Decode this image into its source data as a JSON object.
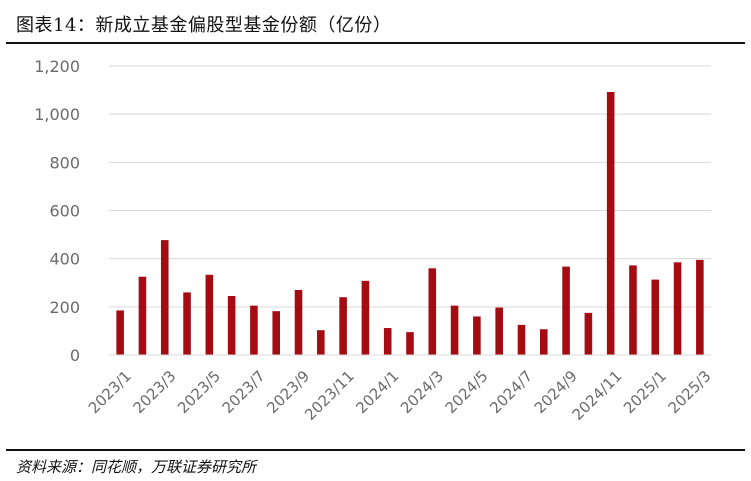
{
  "figure": {
    "title": "图表14：新成立基金偏股型基金份额（亿份）",
    "source": "资料来源：同花顺，万联证券研究所"
  },
  "chart_data": {
    "type": "bar",
    "title": "图表14：新成立基金偏股型基金份额（亿份）",
    "xlabel": "",
    "ylabel": "",
    "ylim": [
      0,
      1200
    ],
    "yticks": [
      0,
      200,
      400,
      600,
      800,
      1000,
      1200
    ],
    "ytick_labels": [
      "0",
      "200",
      "400",
      "600",
      "800",
      "1,000",
      "1,200"
    ],
    "grid": true,
    "bar_color": "#a50c12",
    "categories": [
      "2023/1",
      "2023/2",
      "2023/3",
      "2023/4",
      "2023/5",
      "2023/6",
      "2023/7",
      "2023/8",
      "2023/9",
      "2023/10",
      "2023/11",
      "2023/12",
      "2024/1",
      "2024/2",
      "2024/3",
      "2024/4",
      "2024/5",
      "2024/6",
      "2024/7",
      "2024/8",
      "2024/9",
      "2024/10",
      "2024/11",
      "2024/12",
      "2025/1",
      "2025/2",
      "2025/3"
    ],
    "x_tick_labels": [
      "2023/1",
      "2023/3",
      "2023/5",
      "2023/7",
      "2023/9",
      "2023/11",
      "2024/1",
      "2024/3",
      "2024/5",
      "2024/7",
      "2024/9",
      "2024/11",
      "2025/1",
      "2025/3"
    ],
    "values": [
      185,
      325,
      477,
      260,
      333,
      245,
      205,
      182,
      270,
      103,
      240,
      308,
      112,
      95,
      360,
      205,
      160,
      197,
      125,
      107,
      367,
      175,
      1092,
      372,
      313,
      385,
      395
    ]
  }
}
